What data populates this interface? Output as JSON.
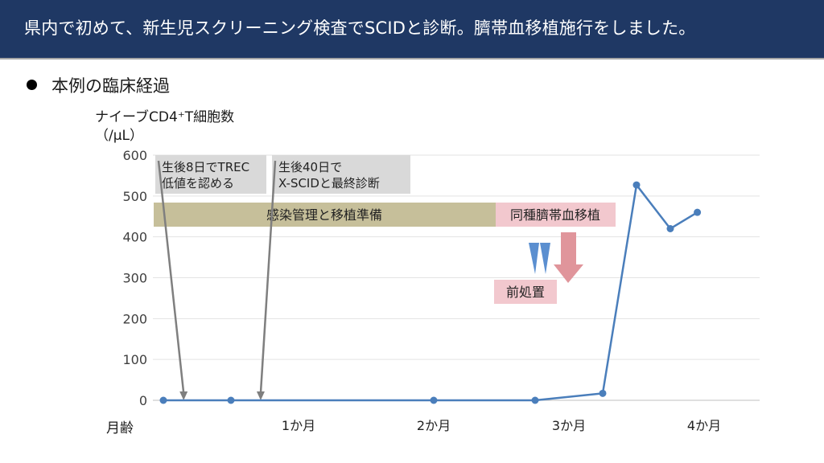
{
  "header": {
    "title": "県内で初めて、新生児スクリーニング検査でSCIDと診断。臍帯血移植施行をしました。"
  },
  "section": {
    "heading": "本例の臨床経過"
  },
  "chart_data": {
    "type": "line",
    "ylabel_line1": "ナイーブCD4⁺T細胞数",
    "ylabel_line2": "（/μL）",
    "xlabel": "月齢",
    "ylim": [
      0,
      600
    ],
    "yticks": [
      0,
      100,
      200,
      300,
      400,
      500,
      600
    ],
    "xlim": [
      0,
      4.5
    ],
    "xticks": [
      {
        "value": 1,
        "label": "1か月"
      },
      {
        "value": 2,
        "label": "2か月"
      },
      {
        "value": 3,
        "label": "3か月"
      },
      {
        "value": 4,
        "label": "4か月"
      }
    ],
    "grid": true,
    "series": [
      {
        "color": "#4a7ebb",
        "x": [
          0,
          0.5,
          2.0,
          2.75,
          3.25,
          3.5,
          3.75,
          3.95
        ],
        "y": [
          0,
          0,
          0,
          0,
          17,
          527,
          420,
          460
        ]
      }
    ],
    "annotations": [
      {
        "text_lines": [
          "生後8日でTREC",
          "低値を認める"
        ],
        "arrow_to_x": 0.15
      },
      {
        "text_lines": [
          "生後40日で",
          "X-SCIDと最終診断"
        ],
        "arrow_to_x": 0.72
      }
    ],
    "phases": [
      {
        "label": "感染管理と移植準備",
        "color": "#c6bf9a"
      },
      {
        "label": "同種臍帯血移植",
        "color": "#f2c8ce"
      }
    ],
    "pretreatment_label": "前処置",
    "colors": {
      "pretreatment_marker": "#5b8fd0",
      "transplant_arrow": "#e0959b",
      "pretreatment_box": "#f2c8ce",
      "annotation_box": "#d9d9d9",
      "annotation_arrow": "#7f7f7f"
    }
  }
}
